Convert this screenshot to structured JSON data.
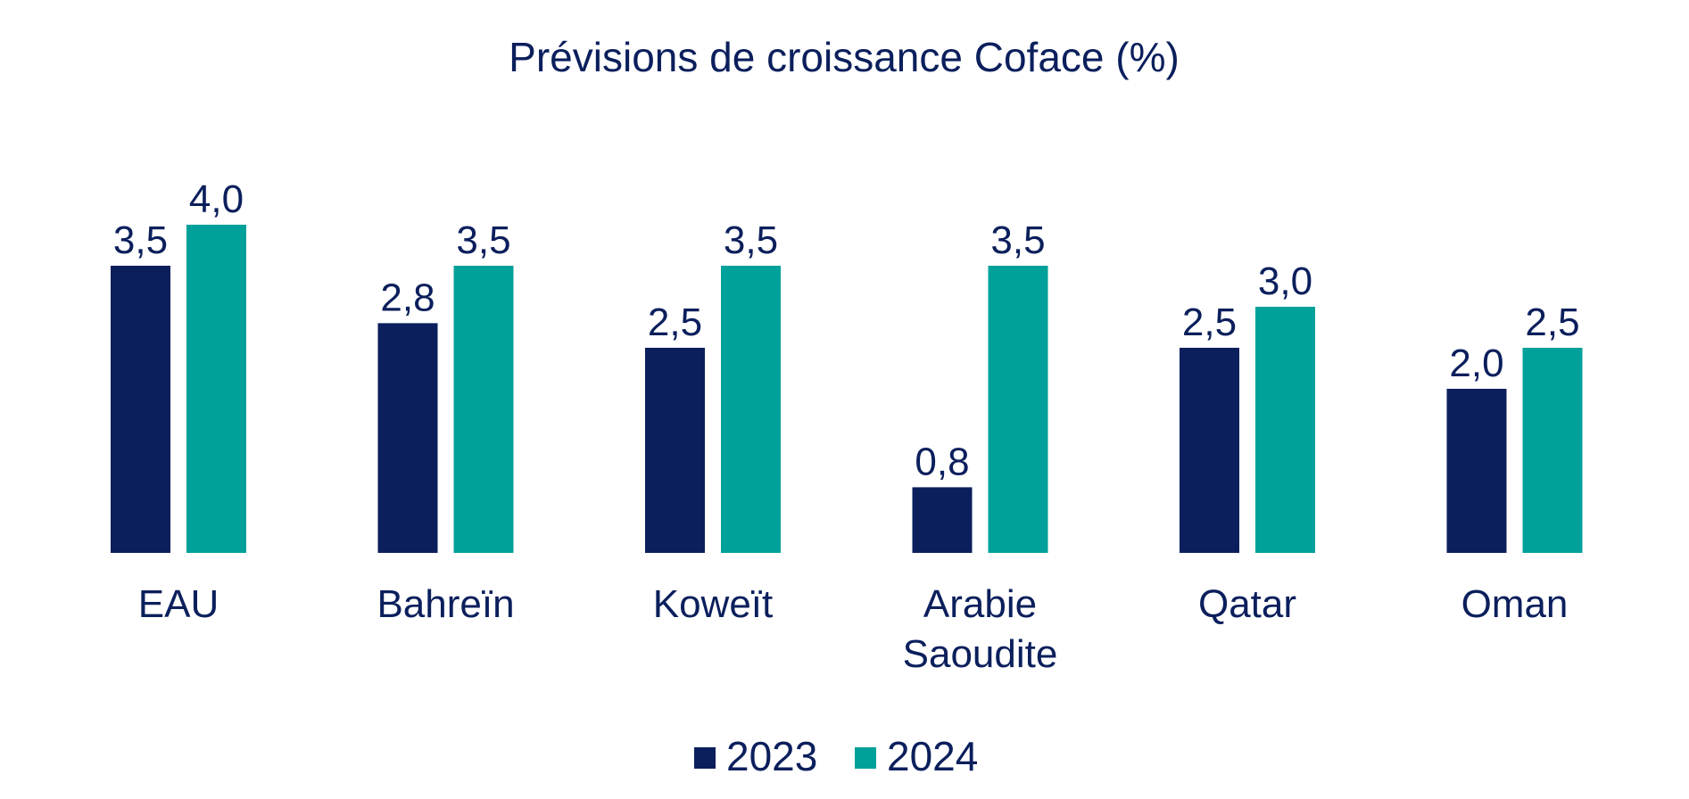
{
  "chart_data": {
    "type": "bar",
    "title": "Prévisions de croissance Coface (%)",
    "xlabel": "",
    "ylabel": "",
    "grid": false,
    "legend_position": "bottom-center",
    "ylim": [
      0,
      4.0
    ],
    "categories": [
      [
        "EAU"
      ],
      [
        "Bahreïn"
      ],
      [
        "Koweït"
      ],
      [
        "Arabie",
        "Saoudite"
      ],
      [
        "Qatar"
      ],
      [
        "Oman"
      ]
    ],
    "series": [
      {
        "name": "2023",
        "color": "#0b1f5c",
        "values": [
          3.5,
          2.8,
          2.5,
          0.8,
          2.5,
          2.0
        ],
        "labels": [
          "3,5",
          "2,8",
          "2,5",
          "0,8",
          "2,5",
          "2,0"
        ]
      },
      {
        "name": "2024",
        "color": "#00a19a",
        "values": [
          4.0,
          3.5,
          3.5,
          3.5,
          3.0,
          2.5
        ],
        "labels": [
          "4,0",
          "3,5",
          "3,5",
          "3,5",
          "3,0",
          "2,5"
        ]
      }
    ]
  }
}
